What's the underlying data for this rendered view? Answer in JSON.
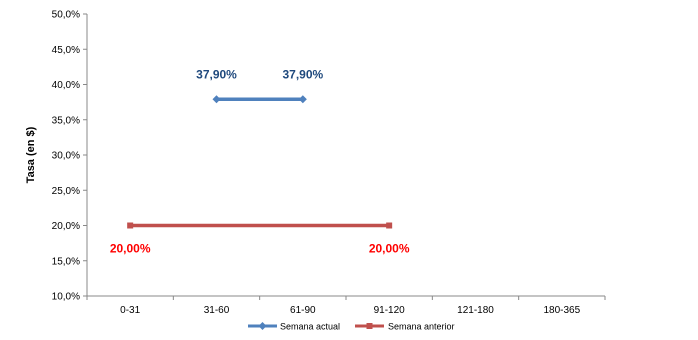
{
  "chart_data": {
    "type": "line",
    "title": "",
    "xlabel": "",
    "ylabel": "Tasa (en $)",
    "categories": [
      "0-31",
      "31-60",
      "61-90",
      "91-120",
      "121-180",
      "180-365"
    ],
    "ylim": [
      10,
      50
    ],
    "yticks": [
      10,
      15,
      20,
      25,
      30,
      35,
      40,
      45,
      50
    ],
    "ytick_labels": [
      "10,0%",
      "15,0%",
      "20,0%",
      "25,0%",
      "30,0%",
      "35,0%",
      "40,0%",
      "45,0%",
      "50,0%"
    ],
    "grid": false,
    "legend_position": "bottom",
    "series": [
      {
        "name": "Semana actual",
        "color": "#4F81BD",
        "marker": "diamond",
        "values": [
          null,
          37.9,
          37.9,
          null,
          null,
          null
        ],
        "labels": [
          null,
          "37,90%",
          "37,90%",
          null,
          null,
          null
        ],
        "label_color": "#1F497D",
        "label_position": "above"
      },
      {
        "name": "Semana anterior",
        "color": "#C0504D",
        "marker": "square",
        "values": [
          20.0,
          null,
          null,
          20.0,
          null,
          null
        ],
        "labels": [
          "20,00%",
          null,
          null,
          "20,00%",
          null,
          null
        ],
        "label_color": "#FF0000",
        "label_position": "below"
      }
    ]
  }
}
